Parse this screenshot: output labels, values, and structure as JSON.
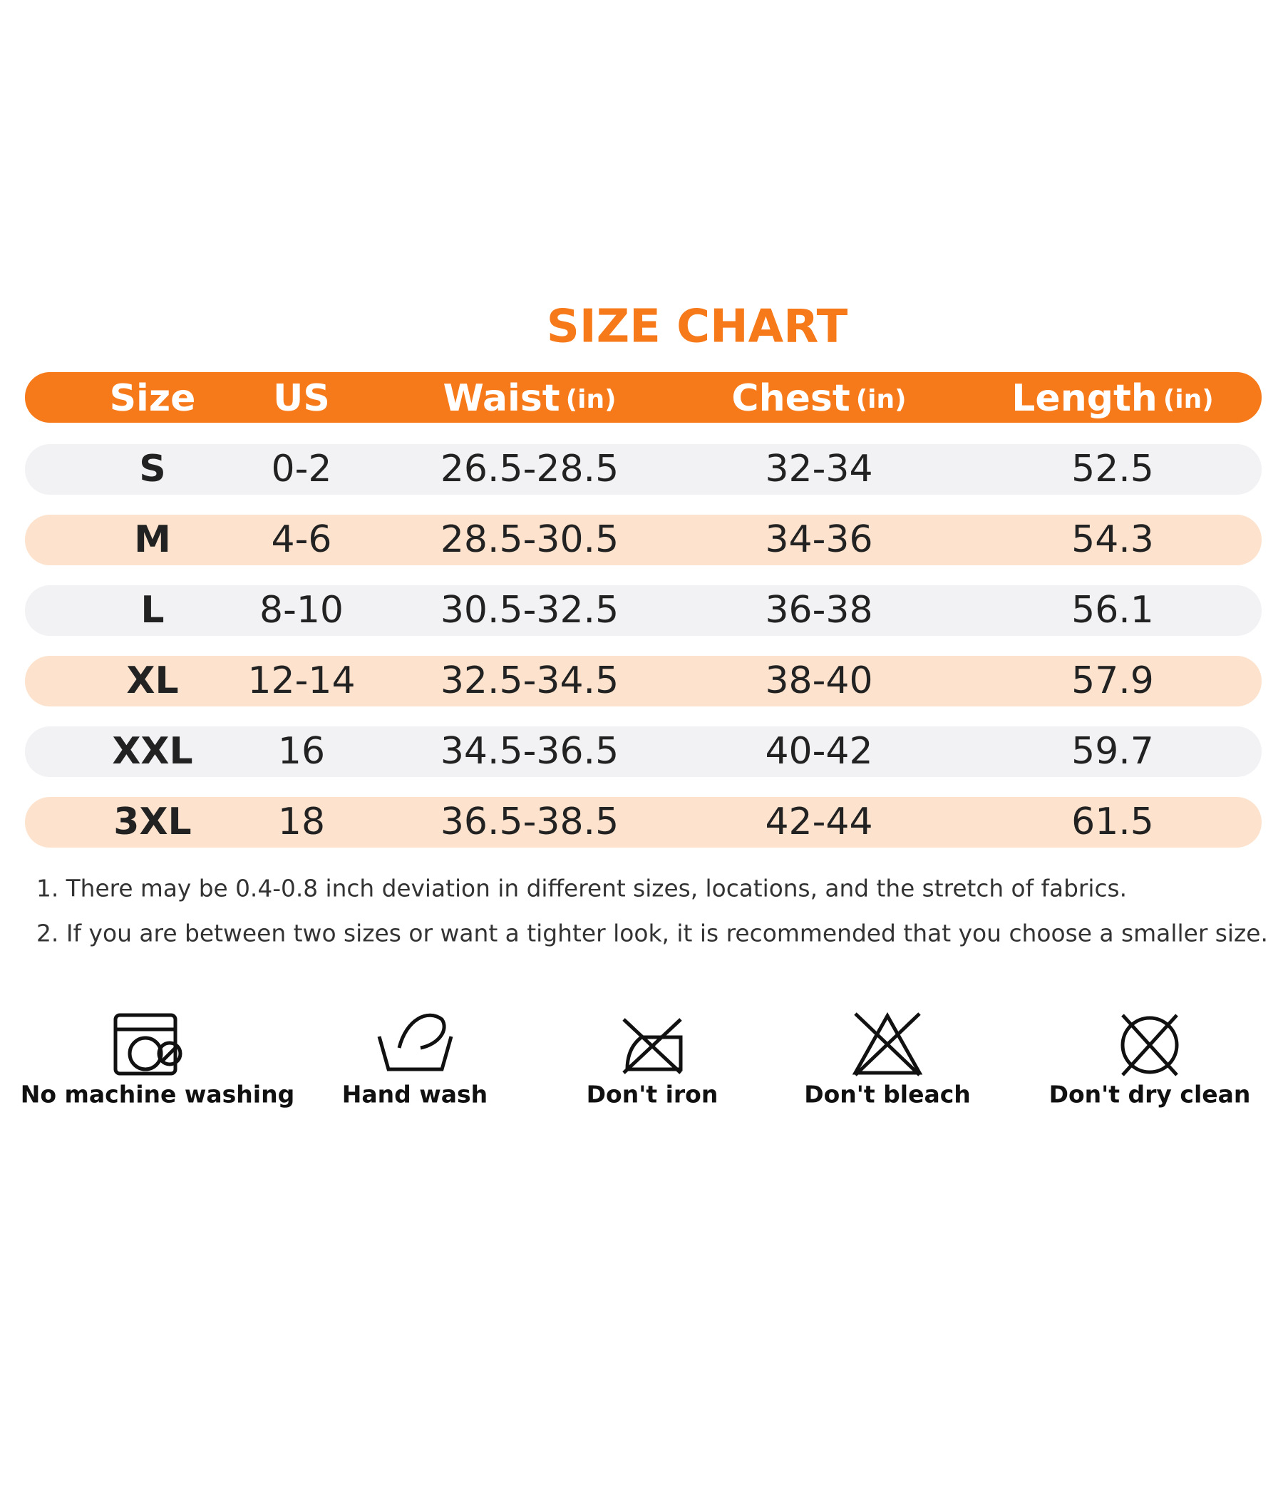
{
  "title": "SIZE CHART",
  "table": {
    "columns": [
      {
        "label": "Size"
      },
      {
        "label": "US"
      },
      {
        "label": "Waist",
        "unit": "(in)"
      },
      {
        "label": "Chest",
        "unit": "(in)"
      },
      {
        "label": "Length",
        "unit": "(in)"
      }
    ],
    "rows": [
      [
        "S",
        "0-2",
        "26.5-28.5",
        "32-34",
        "52.5"
      ],
      [
        "M",
        "4-6",
        "28.5-30.5",
        "34-36",
        "54.3"
      ],
      [
        "L",
        "8-10",
        "30.5-32.5",
        "36-38",
        "56.1"
      ],
      [
        "XL",
        "12-14",
        "32.5-34.5",
        "38-40",
        "57.9"
      ],
      [
        "XXL",
        "16",
        "34.5-36.5",
        "40-42",
        "59.7"
      ],
      [
        "3XL",
        "18",
        "36.5-38.5",
        "42-44",
        "61.5"
      ]
    ]
  },
  "notes": [
    "1. There may be 0.4-0.8 inch deviation in different sizes, locations, and the stretch of fabrics.",
    "2. If you are between two sizes or want a tighter look, it is recommended that you choose a smaller size."
  ],
  "care": [
    {
      "label": "No machine washing"
    },
    {
      "label": "Hand wash"
    },
    {
      "label": "Don't iron"
    },
    {
      "label": "Don't bleach"
    },
    {
      "label": "Don't dry clean"
    }
  ]
}
